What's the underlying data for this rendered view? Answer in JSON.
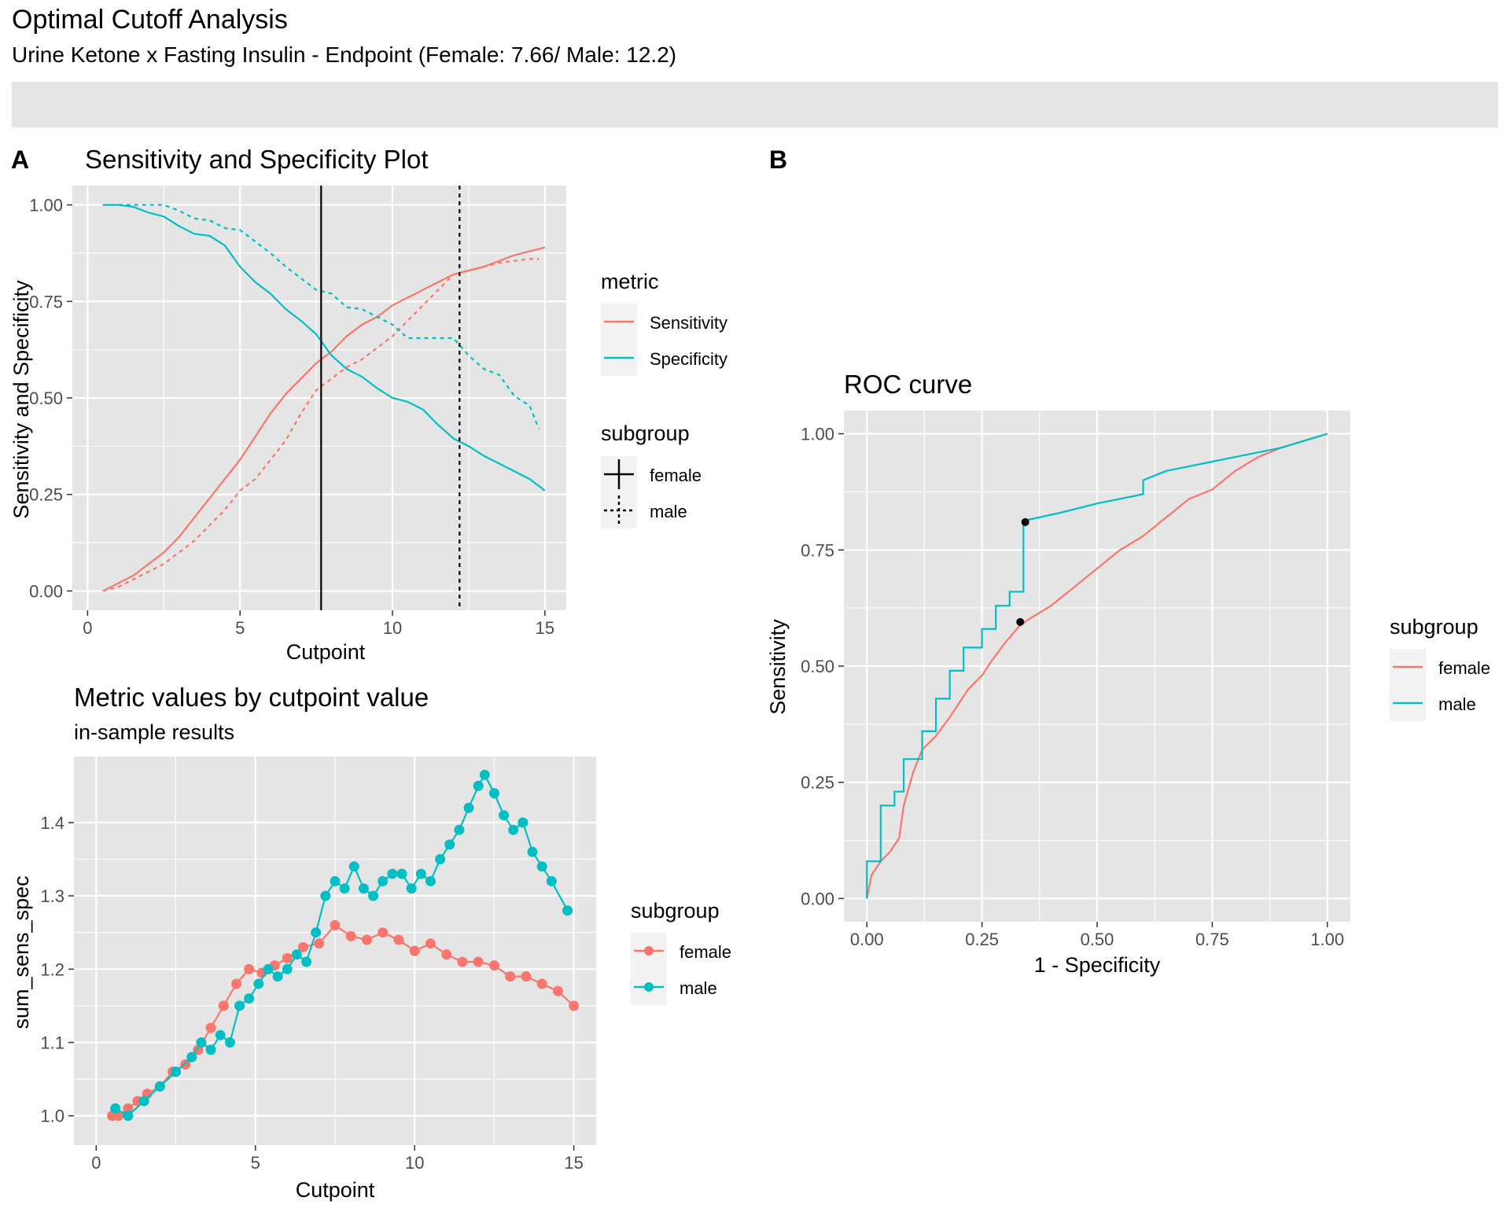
{
  "figure": {
    "title": "Optimal Cutoff Analysis",
    "subtitle": "Urine Ketone x Fasting Insulin - Endpoint  (Female: 7.66/ Male: 12.2)",
    "band_color": "#e5e5e5"
  },
  "panel_labels": [
    "A",
    "B"
  ],
  "colors": {
    "female": "#f8766d",
    "male": "#00bfc4",
    "panel_bg": "#e5e5e5",
    "grid": "#ffffff",
    "text": "#000000",
    "tick_text": "#4d4d4d"
  },
  "chart_data": [
    {
      "id": "sens-spec",
      "type": "line",
      "title": "Sensitivity and Specificity Plot",
      "xlabel": "Cutpoint",
      "ylabel": "Sensitivity and Specificity",
      "xlim": [
        -0.5,
        15.7
      ],
      "ylim": [
        -0.05,
        1.05
      ],
      "xticks": [
        0,
        5,
        10,
        15
      ],
      "yticks": [
        0.0,
        0.25,
        0.5,
        0.75,
        1.0
      ],
      "ytick_labels": [
        "0.00",
        "0.25",
        "0.50",
        "0.75",
        "1.00"
      ],
      "grid": true,
      "legends": [
        {
          "title": "metric",
          "entries": [
            {
              "label": "Sensitivity",
              "color": "#f8766d"
            },
            {
              "label": "Specificity",
              "color": "#00bfc4"
            }
          ]
        },
        {
          "title": "subgroup",
          "entries": [
            {
              "label": "female",
              "linetype": "solid"
            },
            {
              "label": "male",
              "linetype": "dashed"
            }
          ]
        }
      ],
      "vlines": [
        {
          "x": 7.66,
          "subgroup": "female",
          "linetype": "solid"
        },
        {
          "x": 12.2,
          "subgroup": "male",
          "linetype": "dashed"
        }
      ],
      "series": [
        {
          "metric": "Sensitivity",
          "subgroup": "female",
          "color": "#f8766d",
          "dash": false,
          "x": [
            0.5,
            1,
            1.5,
            2,
            2.5,
            3,
            3.5,
            4,
            4.5,
            5,
            5.5,
            6,
            6.5,
            7,
            7.5,
            8,
            8.5,
            9,
            9.5,
            10,
            10.5,
            11,
            11.5,
            12,
            12.5,
            13,
            13.5,
            14,
            14.5,
            15
          ],
          "y": [
            0.0,
            0.02,
            0.04,
            0.07,
            0.1,
            0.14,
            0.19,
            0.24,
            0.29,
            0.34,
            0.4,
            0.46,
            0.51,
            0.55,
            0.59,
            0.62,
            0.66,
            0.69,
            0.71,
            0.74,
            0.76,
            0.78,
            0.8,
            0.82,
            0.83,
            0.84,
            0.855,
            0.87,
            0.88,
            0.89
          ]
        },
        {
          "metric": "Sensitivity",
          "subgroup": "male",
          "color": "#f8766d",
          "dash": true,
          "x": [
            0.5,
            1,
            1.5,
            2,
            2.5,
            3,
            3.5,
            4,
            4.5,
            5,
            5.5,
            6,
            6.5,
            7,
            7.5,
            8,
            8.5,
            9,
            9.5,
            10,
            10.5,
            11,
            11.5,
            12,
            12.5,
            13,
            13.5,
            14,
            14.5,
            14.8
          ],
          "y": [
            0.0,
            0.01,
            0.03,
            0.05,
            0.07,
            0.1,
            0.13,
            0.17,
            0.21,
            0.26,
            0.29,
            0.34,
            0.39,
            0.46,
            0.52,
            0.55,
            0.58,
            0.6,
            0.63,
            0.66,
            0.7,
            0.74,
            0.78,
            0.82,
            0.83,
            0.84,
            0.85,
            0.855,
            0.86,
            0.86
          ]
        },
        {
          "metric": "Specificity",
          "subgroup": "female",
          "color": "#00bfc4",
          "dash": false,
          "x": [
            0.5,
            1,
            1.5,
            2,
            2.5,
            3,
            3.5,
            4,
            4.5,
            5,
            5.5,
            6,
            6.5,
            7,
            7.5,
            8,
            8.5,
            9,
            9.5,
            10,
            10.5,
            11,
            11.5,
            12,
            12.5,
            13,
            13.5,
            14,
            14.5,
            15
          ],
          "y": [
            1.0,
            1.0,
            0.995,
            0.98,
            0.97,
            0.945,
            0.925,
            0.92,
            0.895,
            0.84,
            0.8,
            0.77,
            0.73,
            0.7,
            0.665,
            0.61,
            0.575,
            0.555,
            0.525,
            0.5,
            0.49,
            0.47,
            0.43,
            0.395,
            0.375,
            0.35,
            0.33,
            0.31,
            0.29,
            0.26
          ]
        },
        {
          "metric": "Specificity",
          "subgroup": "male",
          "color": "#00bfc4",
          "dash": true,
          "x": [
            0.5,
            1,
            1.5,
            2,
            2.5,
            3,
            3.5,
            4,
            4.5,
            5,
            5.5,
            6,
            6.5,
            7,
            7.5,
            8,
            8.5,
            9,
            9.5,
            10,
            10.5,
            11,
            11.5,
            12,
            12.5,
            13,
            13.5,
            14,
            14.5,
            14.8
          ],
          "y": [
            1.0,
            1.0,
            1.0,
            1.0,
            1.0,
            0.985,
            0.965,
            0.96,
            0.94,
            0.935,
            0.905,
            0.875,
            0.84,
            0.81,
            0.78,
            0.77,
            0.735,
            0.73,
            0.71,
            0.69,
            0.655,
            0.655,
            0.655,
            0.655,
            0.61,
            0.575,
            0.56,
            0.505,
            0.48,
            0.42
          ]
        }
      ]
    },
    {
      "id": "roc",
      "type": "line",
      "title": "ROC curve",
      "xlabel": "1 - Specificity",
      "ylabel": "Sensitivity",
      "xlim": [
        -0.05,
        1.05
      ],
      "ylim": [
        -0.05,
        1.05
      ],
      "xticks": [
        0.0,
        0.25,
        0.5,
        0.75,
        1.0
      ],
      "xtick_labels": [
        "0.00",
        "0.25",
        "0.50",
        "0.75",
        "1.00"
      ],
      "yticks": [
        0.0,
        0.25,
        0.5,
        0.75,
        1.0
      ],
      "ytick_labels": [
        "0.00",
        "0.25",
        "0.50",
        "0.75",
        "1.00"
      ],
      "grid": true,
      "legend": {
        "title": "subgroup",
        "entries": [
          {
            "label": "female",
            "color": "#f8766d"
          },
          {
            "label": "male",
            "color": "#00bfc4"
          }
        ]
      },
      "series": [
        {
          "subgroup": "female",
          "color": "#f8766d",
          "x": [
            0.0,
            0.01,
            0.03,
            0.05,
            0.07,
            0.08,
            0.1,
            0.12,
            0.15,
            0.18,
            0.2,
            0.22,
            0.25,
            0.27,
            0.3,
            0.33,
            0.35,
            0.4,
            0.45,
            0.5,
            0.55,
            0.6,
            0.65,
            0.7,
            0.75,
            0.8,
            0.85,
            0.9,
            0.95,
            1.0
          ],
          "y": [
            0.0,
            0.05,
            0.08,
            0.1,
            0.13,
            0.2,
            0.27,
            0.32,
            0.35,
            0.39,
            0.42,
            0.45,
            0.48,
            0.51,
            0.55,
            0.585,
            0.6,
            0.63,
            0.67,
            0.71,
            0.75,
            0.78,
            0.82,
            0.86,
            0.88,
            0.92,
            0.95,
            0.97,
            0.985,
            1.0
          ]
        },
        {
          "subgroup": "male",
          "color": "#00bfc4",
          "x": [
            0.0,
            0.0,
            0.03,
            0.03,
            0.06,
            0.06,
            0.08,
            0.08,
            0.12,
            0.12,
            0.15,
            0.15,
            0.18,
            0.18,
            0.21,
            0.21,
            0.25,
            0.25,
            0.28,
            0.28,
            0.31,
            0.31,
            0.34,
            0.34,
            0.35,
            0.42,
            0.5,
            0.55,
            0.6,
            0.6,
            0.65,
            0.7,
            0.75,
            0.8,
            0.85,
            0.9,
            0.95,
            1.0
          ],
          "y": [
            0.0,
            0.08,
            0.08,
            0.2,
            0.2,
            0.23,
            0.23,
            0.3,
            0.3,
            0.36,
            0.36,
            0.43,
            0.43,
            0.49,
            0.49,
            0.54,
            0.54,
            0.58,
            0.58,
            0.63,
            0.63,
            0.66,
            0.66,
            0.81,
            0.815,
            0.83,
            0.85,
            0.86,
            0.87,
            0.9,
            0.92,
            0.93,
            0.94,
            0.95,
            0.96,
            0.97,
            0.985,
            1.0
          ]
        }
      ],
      "optimal_points": [
        {
          "subgroup": "female",
          "x": 0.333,
          "y": 0.595
        },
        {
          "subgroup": "male",
          "x": 0.344,
          "y": 0.81
        }
      ]
    },
    {
      "id": "metric",
      "type": "scatter",
      "title": "Metric values by cutpoint value",
      "subtitle": "in-sample results",
      "xlabel": "Cutpoint",
      "ylabel": "sum_sens_spec",
      "xlim": [
        -0.7,
        15.7
      ],
      "ylim": [
        0.96,
        1.49
      ],
      "xticks": [
        0,
        5,
        10,
        15
      ],
      "yticks": [
        1.0,
        1.1,
        1.2,
        1.3,
        1.4
      ],
      "ytick_labels": [
        "1.0",
        "1.1",
        "1.2",
        "1.3",
        "1.4"
      ],
      "grid": true,
      "legend": {
        "title": "subgroup",
        "entries": [
          {
            "label": "female",
            "color": "#f8766d"
          },
          {
            "label": "male",
            "color": "#00bfc4"
          }
        ]
      },
      "series": [
        {
          "subgroup": "female",
          "color": "#f8766d",
          "x": [
            0.5,
            0.7,
            1.0,
            1.3,
            1.6,
            2.0,
            2.4,
            2.8,
            3.2,
            3.6,
            4.0,
            4.4,
            4.8,
            5.2,
            5.6,
            6.0,
            6.5,
            7.0,
            7.5,
            8.0,
            8.5,
            9.0,
            9.5,
            10.0,
            10.5,
            11.0,
            11.5,
            12.0,
            12.5,
            13.0,
            13.5,
            14.0,
            14.5,
            15.0
          ],
          "y": [
            1.0,
            1.0,
            1.01,
            1.02,
            1.03,
            1.04,
            1.06,
            1.07,
            1.09,
            1.12,
            1.15,
            1.18,
            1.2,
            1.195,
            1.205,
            1.215,
            1.23,
            1.235,
            1.26,
            1.245,
            1.24,
            1.25,
            1.24,
            1.225,
            1.235,
            1.22,
            1.21,
            1.21,
            1.205,
            1.19,
            1.19,
            1.18,
            1.17,
            1.15
          ]
        },
        {
          "subgroup": "male",
          "color": "#00bfc4",
          "x": [
            0.6,
            1.0,
            1.5,
            2.0,
            2.5,
            3.0,
            3.3,
            3.6,
            3.9,
            4.2,
            4.5,
            4.8,
            5.1,
            5.4,
            5.7,
            6.0,
            6.3,
            6.6,
            6.9,
            7.2,
            7.5,
            7.8,
            8.1,
            8.4,
            8.7,
            9.0,
            9.3,
            9.6,
            9.9,
            10.2,
            10.5,
            10.8,
            11.1,
            11.4,
            11.7,
            12.0,
            12.2,
            12.5,
            12.8,
            13.1,
            13.4,
            13.7,
            14.0,
            14.3,
            14.8
          ],
          "y": [
            1.01,
            1.0,
            1.02,
            1.04,
            1.06,
            1.08,
            1.1,
            1.09,
            1.11,
            1.1,
            1.15,
            1.16,
            1.18,
            1.2,
            1.19,
            1.2,
            1.22,
            1.21,
            1.25,
            1.3,
            1.32,
            1.31,
            1.34,
            1.31,
            1.3,
            1.32,
            1.33,
            1.33,
            1.31,
            1.33,
            1.32,
            1.35,
            1.37,
            1.39,
            1.42,
            1.45,
            1.465,
            1.44,
            1.41,
            1.39,
            1.4,
            1.36,
            1.34,
            1.32,
            1.28
          ]
        }
      ]
    }
  ]
}
